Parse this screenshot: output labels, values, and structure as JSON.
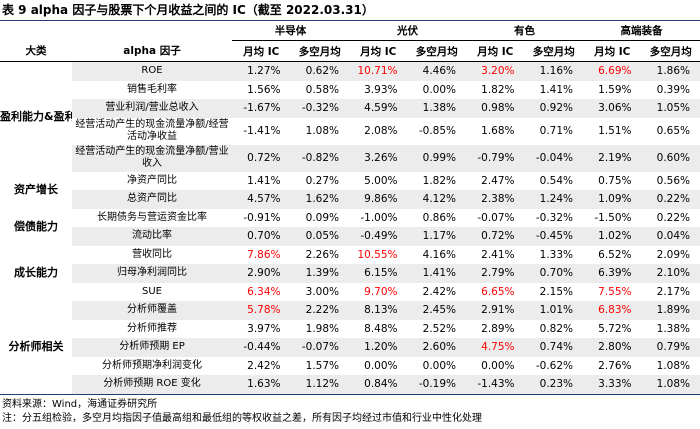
{
  "header": {
    "title": "表 9 alpha 因子与股票下个月收益之间的 IC（截至 2022.03.31）"
  },
  "table": {
    "groups": [
      "半导体",
      "光伏",
      "有色",
      "高端装备"
    ],
    "columns": [
      "大类",
      "alpha 因子",
      "月均 IC",
      "多空月均",
      "月均 IC",
      "多空月均",
      "月均 IC",
      "多空月均",
      "月均 IC",
      "多空月均"
    ],
    "highlight_color": "#ff0000",
    "categories": [
      {
        "label": "盈利能力&盈利质量",
        "rows": 5
      },
      {
        "label": "资产增长",
        "rows": 2
      },
      {
        "label": "偿债能力",
        "rows": 2
      },
      {
        "label": "成长能力",
        "rows": 3
      },
      {
        "label": "分析师相关",
        "rows": 5
      }
    ],
    "rows": [
      {
        "factor": "ROE",
        "cells": [
          "1.27%",
          "0.62%",
          "10.71%",
          "4.46%",
          "3.20%",
          "1.16%",
          "6.69%",
          "1.86%"
        ],
        "highlight": [
          2,
          4,
          6
        ]
      },
      {
        "factor": "销售毛利率",
        "cells": [
          "1.56%",
          "0.58%",
          "3.93%",
          "0.00%",
          "1.82%",
          "1.41%",
          "1.59%",
          "0.39%"
        ],
        "highlight": []
      },
      {
        "factor": "营业利润/营业总收入",
        "cells": [
          "-1.67%",
          "-0.32%",
          "4.59%",
          "1.38%",
          "0.98%",
          "0.92%",
          "3.06%",
          "1.05%"
        ],
        "highlight": []
      },
      {
        "factor": "经营活动产生的现金流量净额/经营活动净收益",
        "cells": [
          "-1.41%",
          "1.08%",
          "2.08%",
          "-0.85%",
          "1.68%",
          "0.71%",
          "1.51%",
          "0.65%"
        ],
        "highlight": []
      },
      {
        "factor": "经营活动产生的现金流量净额/营业收入",
        "cells": [
          "0.72%",
          "-0.82%",
          "3.26%",
          "0.99%",
          "-0.79%",
          "-0.04%",
          "2.19%",
          "0.60%"
        ],
        "highlight": []
      },
      {
        "factor": "净资产同比",
        "cells": [
          "1.41%",
          "0.27%",
          "5.00%",
          "1.82%",
          "2.47%",
          "0.54%",
          "0.75%",
          "0.56%"
        ],
        "highlight": []
      },
      {
        "factor": "总资产同比",
        "cells": [
          "4.57%",
          "1.62%",
          "9.86%",
          "4.12%",
          "2.38%",
          "1.24%",
          "1.09%",
          "0.22%"
        ],
        "highlight": []
      },
      {
        "factor": "长期债务与营运资金比率",
        "cells": [
          "-0.91%",
          "0.09%",
          "-1.00%",
          "0.86%",
          "-0.07%",
          "-0.32%",
          "-1.50%",
          "0.22%"
        ],
        "highlight": []
      },
      {
        "factor": "流动比率",
        "cells": [
          "0.70%",
          "0.05%",
          "-0.49%",
          "1.17%",
          "0.72%",
          "-0.45%",
          "1.02%",
          "0.04%"
        ],
        "highlight": []
      },
      {
        "factor": "营收同比",
        "cells": [
          "7.86%",
          "2.26%",
          "10.55%",
          "4.16%",
          "2.41%",
          "1.33%",
          "6.52%",
          "2.09%"
        ],
        "highlight": [
          0,
          2
        ]
      },
      {
        "factor": "归母净利润同比",
        "cells": [
          "2.90%",
          "1.39%",
          "6.15%",
          "1.41%",
          "2.79%",
          "0.70%",
          "6.39%",
          "2.10%"
        ],
        "highlight": []
      },
      {
        "factor": "SUE",
        "cells": [
          "6.34%",
          "3.00%",
          "9.70%",
          "2.42%",
          "6.65%",
          "2.15%",
          "7.55%",
          "2.17%"
        ],
        "highlight": [
          0,
          2,
          4,
          6
        ]
      },
      {
        "factor": "分析师覆盖",
        "cells": [
          "5.78%",
          "2.22%",
          "8.13%",
          "2.45%",
          "2.91%",
          "1.01%",
          "6.83%",
          "1.89%"
        ],
        "highlight": [
          0,
          6
        ]
      },
      {
        "factor": "分析师推荐",
        "cells": [
          "3.97%",
          "1.98%",
          "8.48%",
          "2.52%",
          "2.89%",
          "0.82%",
          "5.72%",
          "1.38%"
        ],
        "highlight": []
      },
      {
        "factor": "分析师预期 EP",
        "cells": [
          "-0.44%",
          "-0.07%",
          "1.20%",
          "2.60%",
          "4.75%",
          "0.74%",
          "2.80%",
          "0.79%"
        ],
        "highlight": [
          4
        ]
      },
      {
        "factor": "分析师预期净利润变化",
        "cells": [
          "2.42%",
          "1.57%",
          "0.00%",
          "0.00%",
          "0.00%",
          "-0.62%",
          "2.76%",
          "1.08%"
        ],
        "highlight": []
      },
      {
        "factor": "分析师预期 ROE 变化",
        "cells": [
          "1.63%",
          "1.12%",
          "0.84%",
          "-0.19%",
          "-1.43%",
          "0.23%",
          "3.33%",
          "1.08%"
        ],
        "highlight": []
      }
    ]
  },
  "notes": [
    "资料来源：Wind，海通证券研究所",
    "注：分五组检验，多空月均指因子值最高组和最低组的等权收益之差，所有因子均经过市值和行业中性化处理"
  ]
}
